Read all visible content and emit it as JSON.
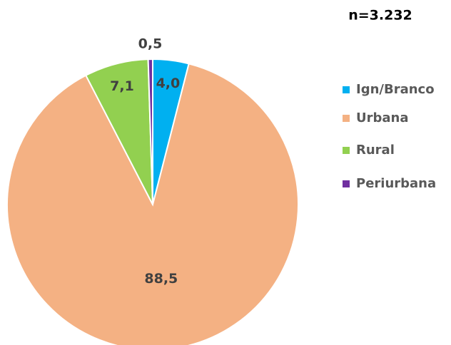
{
  "chart_data": {
    "type": "pie",
    "annotation": "n=3.232",
    "categories": [
      "Ign/Branco",
      "Urbana",
      "Rural",
      "Periurbana"
    ],
    "values": [
      4.0,
      88.5,
      7.1,
      0.5
    ],
    "value_labels": [
      "4,0",
      "88,5",
      "7,1",
      "0,5"
    ],
    "colors": [
      "#00B0F0",
      "#F4B183",
      "#92D050",
      "#7030A0"
    ],
    "legend": "right"
  }
}
